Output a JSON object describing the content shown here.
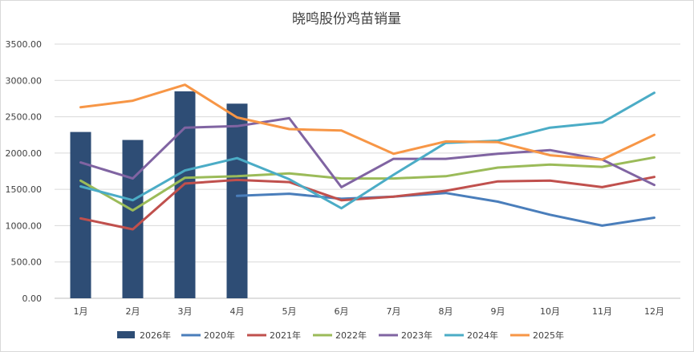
{
  "chart_data": {
    "type": "bar",
    "title": "晓鸣股份鸡苗销量",
    "categories": [
      "1月",
      "2月",
      "3月",
      "4月",
      "5月",
      "6月",
      "7月",
      "8月",
      "9月",
      "10月",
      "11月",
      "12月"
    ],
    "ylim": [
      0,
      3500
    ],
    "yticks": [
      "0.00",
      "500.00",
      "1000.00",
      "1500.00",
      "2000.00",
      "2500.00",
      "3000.00",
      "3500.00"
    ],
    "grid": true,
    "legend_position": "bottom",
    "series": [
      {
        "name": "2026年",
        "kind": "bar",
        "color": "#2e4d75",
        "values": [
          2290,
          2180,
          2850,
          2680,
          null,
          null,
          null,
          null,
          null,
          null,
          null,
          null
        ]
      },
      {
        "name": "2020年",
        "kind": "line",
        "color": "#4a7ebb",
        "values": [
          null,
          null,
          null,
          1410,
          1440,
          1370,
          1400,
          1450,
          1330,
          1150,
          1000,
          1110
        ]
      },
      {
        "name": "2021年",
        "kind": "line",
        "color": "#c0504d",
        "values": [
          1100,
          950,
          1580,
          1630,
          1600,
          1350,
          1400,
          1480,
          1610,
          1620,
          1530,
          1670
        ]
      },
      {
        "name": "2022年",
        "kind": "line",
        "color": "#9bbb59",
        "values": [
          1620,
          1210,
          1660,
          1680,
          1720,
          1650,
          1650,
          1680,
          1800,
          1840,
          1810,
          1940
        ]
      },
      {
        "name": "2023年",
        "kind": "line",
        "color": "#8064a2",
        "values": [
          1870,
          1650,
          2350,
          2370,
          2480,
          1530,
          1920,
          1920,
          1990,
          2040,
          1910,
          1560
        ]
      },
      {
        "name": "2024年",
        "kind": "line",
        "color": "#4bacc6",
        "values": [
          1540,
          1350,
          1760,
          1930,
          1640,
          1240,
          1700,
          2140,
          2170,
          2350,
          2420,
          2830
        ]
      },
      {
        "name": "2025年",
        "kind": "line",
        "color": "#f79646",
        "values": [
          2630,
          2720,
          2940,
          2490,
          2330,
          2310,
          1990,
          2160,
          2150,
          1970,
          1910,
          2250
        ]
      }
    ]
  }
}
